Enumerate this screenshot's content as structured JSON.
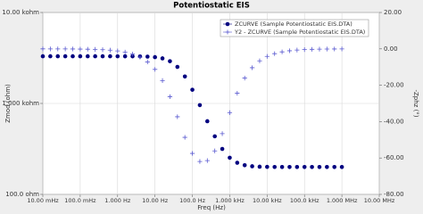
{
  "chart_data": {
    "type": "line",
    "title": "Potentiostatic EIS",
    "x_label": "Freq (Hz)",
    "y_label": "Zmod (ohm)",
    "y2_label": "-Zphz (°)",
    "xscale": "log",
    "yscale": "log",
    "grid": true,
    "legend": "upper right",
    "xlim": [
      0.01,
      10000000
    ],
    "xticks": [
      {
        "value": 0.01,
        "label": "10.00 mHz"
      },
      {
        "value": 0.1,
        "label": "100.0 mHz"
      },
      {
        "value": 1,
        "label": "1.000 Hz"
      },
      {
        "value": 10,
        "label": "10.00 Hz"
      },
      {
        "value": 100,
        "label": "100.0 Hz"
      },
      {
        "value": 1000,
        "label": "1.000 kHz"
      },
      {
        "value": 10000,
        "label": "10.00 kHz"
      },
      {
        "value": 100000,
        "label": "100.0 kHz"
      },
      {
        "value": 1000000,
        "label": "1.000 MHz"
      },
      {
        "value": 10000000,
        "label": "10.00 MHz"
      }
    ],
    "ylim": [
      100,
      10000
    ],
    "yticks": [
      {
        "value": 100,
        "label": "100.0 ohm"
      },
      {
        "value": 1000,
        "label": "1.000 kohm"
      },
      {
        "value": 10000,
        "label": "10.00 kohm"
      }
    ],
    "y2lim": [
      -80,
      20
    ],
    "y2ticks": [
      {
        "value": 20,
        "label": "20.00"
      },
      {
        "value": 0,
        "label": "0.00"
      },
      {
        "value": -20,
        "label": "-20.00"
      },
      {
        "value": -40,
        "label": "-40.00"
      },
      {
        "value": -60,
        "label": "-60.00"
      },
      {
        "value": -80,
        "label": "-80.00"
      }
    ],
    "x": [
      0.01,
      0.01585,
      0.02512,
      0.03981,
      0.0631,
      0.1,
      0.1585,
      0.2512,
      0.3981,
      0.631,
      1,
      1.585,
      2.512,
      3.981,
      6.31,
      10,
      15.85,
      25.12,
      39.81,
      63.1,
      100,
      158.5,
      251.2,
      398.1,
      631,
      1000,
      1585,
      2512,
      3981,
      6310,
      10000,
      15850,
      25120,
      39810,
      63100,
      100000,
      158500,
      251200,
      398100,
      631000,
      1000000
    ],
    "series": [
      {
        "name": "ZCURVE (Sample Potentiostatic EIS.DTA)",
        "color": "#000080",
        "marker": "circle",
        "values": [
          3300,
          3300,
          3300,
          3300,
          3300,
          3300,
          3300,
          3300,
          3300,
          3300,
          3299,
          3298,
          3295,
          3288,
          3271,
          3228,
          3128,
          2911,
          2521,
          1977,
          1414,
          958,
          637,
          435,
          316,
          252.7,
          222.6,
          209.3,
          203.7,
          201.5,
          200.7,
          200.2,
          200.1,
          200,
          200,
          200,
          200,
          200,
          200,
          200,
          200
        ]
      },
      {
        "name": "Y2 - ZCURVE (Sample Potentiostatic EIS.DTA)",
        "color": "#5a5ad0",
        "marker": "plus",
        "axis": "y2",
        "values": [
          -0.01,
          -0.02,
          -0.03,
          -0.05,
          -0.07,
          -0.12,
          -0.18,
          -0.29,
          -0.46,
          -0.72,
          -1.15,
          -1.81,
          -2.88,
          -4.55,
          -7.18,
          -11.28,
          -17.45,
          -26.29,
          -37.32,
          -48.67,
          -57.49,
          -61.93,
          -61.45,
          -56.1,
          -46.6,
          -35.07,
          -24.39,
          -16.06,
          -10.35,
          -6.58,
          -4.16,
          -2.63,
          -1.66,
          -1.05,
          -0.66,
          -0.42,
          -0.26,
          -0.17,
          -0.1,
          -0.07,
          -0.04
        ]
      }
    ]
  }
}
